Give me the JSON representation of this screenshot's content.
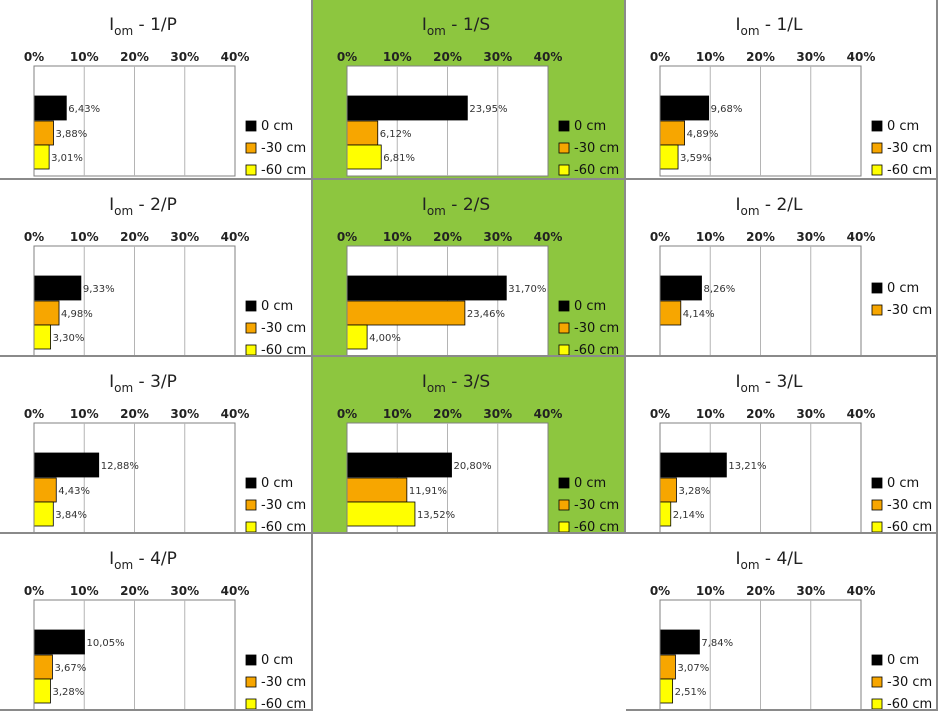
{
  "colors": {
    "0 cm": "#000000",
    "-30 cm": "#f7a600",
    "-60 cm": "#ffff00",
    "highlight": "#8dc63f",
    "plot_border": "#808080",
    "grid": "#b4b4b4",
    "label": "#333333"
  },
  "chart_data": [
    {
      "id": "1-P",
      "type": "bar",
      "orientation": "horizontal",
      "title_main": "I",
      "title_sub": "om",
      "title_suffix": " - 1/P",
      "xticks": [
        "0%",
        "10%",
        "20%",
        "30%",
        "40%"
      ],
      "xlim": [
        0,
        40
      ],
      "highlight": false,
      "series": [
        {
          "name": "0 cm",
          "value": 6.43,
          "label": "6,43%"
        },
        {
          "name": "-30 cm",
          "value": 3.88,
          "label": "3,88%"
        },
        {
          "name": "-60 cm",
          "value": 3.01,
          "label": "3,01%"
        }
      ]
    },
    {
      "id": "1-S",
      "type": "bar",
      "orientation": "horizontal",
      "title_main": "I",
      "title_sub": "om",
      "title_suffix": " - 1/S",
      "xticks": [
        "0%",
        "10%",
        "20%",
        "30%",
        "40%"
      ],
      "xlim": [
        0,
        40
      ],
      "highlight": true,
      "series": [
        {
          "name": "0 cm",
          "value": 23.95,
          "label": "23,95%"
        },
        {
          "name": "-30 cm",
          "value": 6.12,
          "label": "6,12%"
        },
        {
          "name": "-60 cm",
          "value": 6.81,
          "label": "6,81%"
        }
      ]
    },
    {
      "id": "1-L",
      "type": "bar",
      "orientation": "horizontal",
      "title_main": "I",
      "title_sub": "om",
      "title_suffix": " - 1/L",
      "xticks": [
        "0%",
        "10%",
        "20%",
        "30%",
        "40%"
      ],
      "xlim": [
        0,
        40
      ],
      "highlight": false,
      "series": [
        {
          "name": "0 cm",
          "value": 9.68,
          "label": "9,68%"
        },
        {
          "name": "-30 cm",
          "value": 4.89,
          "label": "4,89%"
        },
        {
          "name": "-60 cm",
          "value": 3.59,
          "label": "3,59%"
        }
      ]
    },
    {
      "id": "2-P",
      "type": "bar",
      "orientation": "horizontal",
      "title_main": "I",
      "title_sub": "om",
      "title_suffix": " - 2/P",
      "xticks": [
        "0%",
        "10%",
        "20%",
        "30%",
        "40%"
      ],
      "xlim": [
        0,
        40
      ],
      "highlight": false,
      "series": [
        {
          "name": "0 cm",
          "value": 9.33,
          "label": "9,33%"
        },
        {
          "name": "-30 cm",
          "value": 4.98,
          "label": "4,98%"
        },
        {
          "name": "-60 cm",
          "value": 3.3,
          "label": "3,30%"
        }
      ]
    },
    {
      "id": "2-S",
      "type": "bar",
      "orientation": "horizontal",
      "title_main": "I",
      "title_sub": "om",
      "title_suffix": " - 2/S",
      "xticks": [
        "0%",
        "10%",
        "20%",
        "30%",
        "40%"
      ],
      "xlim": [
        0,
        40
      ],
      "highlight": true,
      "series": [
        {
          "name": "0 cm",
          "value": 31.7,
          "label": "31,70%"
        },
        {
          "name": "-30 cm",
          "value": 23.46,
          "label": "23,46%"
        },
        {
          "name": "-60 cm",
          "value": 4.0,
          "label": "4,00%"
        }
      ]
    },
    {
      "id": "2-L",
      "type": "bar",
      "orientation": "horizontal",
      "title_main": "I",
      "title_sub": "om",
      "title_suffix": " - 2/L",
      "xticks": [
        "0%",
        "10%",
        "20%",
        "30%",
        "40%"
      ],
      "xlim": [
        0,
        40
      ],
      "highlight": false,
      "series": [
        {
          "name": "0 cm",
          "value": 8.26,
          "label": "8,26%"
        },
        {
          "name": "-30 cm",
          "value": 4.14,
          "label": "4,14%"
        }
      ]
    },
    {
      "id": "3-P",
      "type": "bar",
      "orientation": "horizontal",
      "title_main": "I",
      "title_sub": "om",
      "title_suffix": " - 3/P",
      "xticks": [
        "0%",
        "10%",
        "20%",
        "30%",
        "40%"
      ],
      "xlim": [
        0,
        40
      ],
      "highlight": false,
      "series": [
        {
          "name": "0 cm",
          "value": 12.88,
          "label": "12,88%"
        },
        {
          "name": "-30 cm",
          "value": 4.43,
          "label": "4,43%"
        },
        {
          "name": "-60 cm",
          "value": 3.84,
          "label": "3,84%"
        }
      ]
    },
    {
      "id": "3-S",
      "type": "bar",
      "orientation": "horizontal",
      "title_main": "I",
      "title_sub": "om",
      "title_suffix": " - 3/S",
      "xticks": [
        "0%",
        "10%",
        "20%",
        "30%",
        "40%"
      ],
      "xlim": [
        0,
        40
      ],
      "highlight": true,
      "series": [
        {
          "name": "0 cm",
          "value": 20.8,
          "label": "20,80%"
        },
        {
          "name": "-30 cm",
          "value": 11.91,
          "label": "11,91%"
        },
        {
          "name": "-60 cm",
          "value": 13.52,
          "label": "13,52%"
        }
      ]
    },
    {
      "id": "3-L",
      "type": "bar",
      "orientation": "horizontal",
      "title_main": "I",
      "title_sub": "om",
      "title_suffix": " - 3/L",
      "xticks": [
        "0%",
        "10%",
        "20%",
        "30%",
        "40%"
      ],
      "xlim": [
        0,
        40
      ],
      "highlight": false,
      "series": [
        {
          "name": "0 cm",
          "value": 13.21,
          "label": "13,21%"
        },
        {
          "name": "-30 cm",
          "value": 3.28,
          "label": "3,28%"
        },
        {
          "name": "-60 cm",
          "value": 2.14,
          "label": "2,14%"
        }
      ]
    },
    {
      "id": "4-P",
      "type": "bar",
      "orientation": "horizontal",
      "title_main": "I",
      "title_sub": "om",
      "title_suffix": " - 4/P",
      "xticks": [
        "0%",
        "10%",
        "20%",
        "30%",
        "40%"
      ],
      "xlim": [
        0,
        40
      ],
      "highlight": false,
      "series": [
        {
          "name": "0 cm",
          "value": 10.05,
          "label": "10,05%"
        },
        {
          "name": "-30 cm",
          "value": 3.67,
          "label": "3,67%"
        },
        {
          "name": "-60 cm",
          "value": 3.28,
          "label": "3,28%"
        }
      ]
    },
    {
      "id": "4-L",
      "type": "bar",
      "orientation": "horizontal",
      "title_main": "I",
      "title_sub": "om",
      "title_suffix": " - 4/L",
      "xticks": [
        "0%",
        "10%",
        "20%",
        "30%",
        "40%"
      ],
      "xlim": [
        0,
        40
      ],
      "highlight": false,
      "series": [
        {
          "name": "0 cm",
          "value": 7.84,
          "label": "7,84%"
        },
        {
          "name": "-30 cm",
          "value": 3.07,
          "label": "3,07%"
        },
        {
          "name": "-60 cm",
          "value": 2.51,
          "label": "2,51%"
        }
      ]
    }
  ]
}
